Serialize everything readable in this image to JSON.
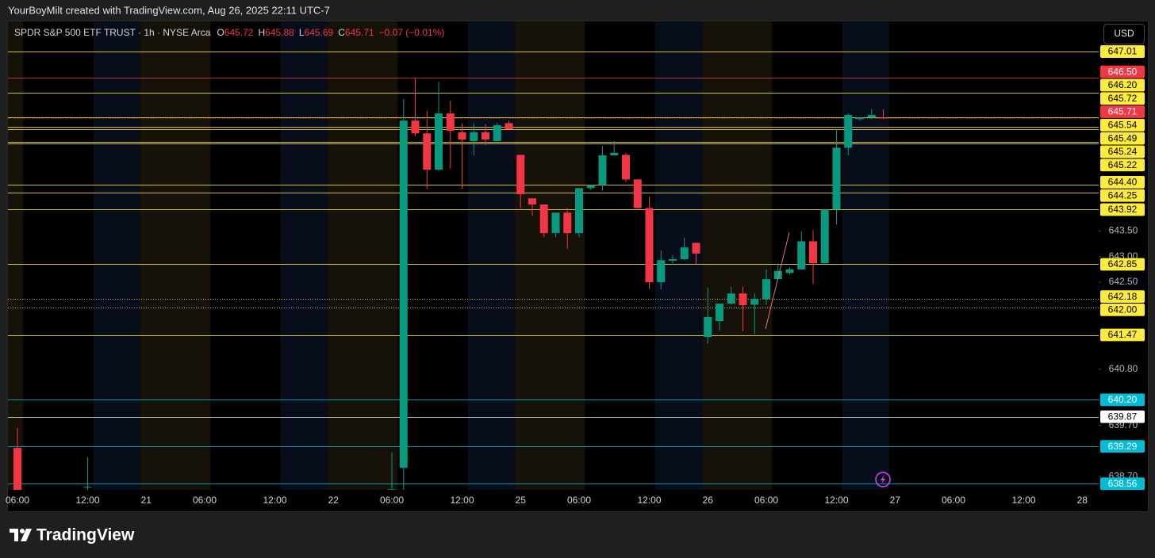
{
  "header": "YourBoyMilt created with TradingView.com, Aug 26, 2025 22:11 UTC-7",
  "footer_logo": "TradingView",
  "chart_data": {
    "type": "candlestick",
    "legend": {
      "symbol": "SPDR S&P 500 ETF TRUST · 1h · NYSE Arca",
      "open_label": "O",
      "open": 645.72,
      "high_label": "H",
      "high": 645.88,
      "low_label": "L",
      "low": 645.69,
      "close_label": "C",
      "close": 645.71,
      "change": "−0.07 (−0.01%)",
      "color": "#f23645"
    },
    "currency": "USD",
    "categories": [
      "06:00",
      null,
      null,
      null,
      null,
      null,
      "12:00",
      null,
      null,
      null,
      null,
      "21",
      null,
      null,
      null,
      null,
      "06:00",
      null,
      null,
      null,
      null,
      null,
      "12:00",
      null,
      null,
      null,
      null,
      "22",
      null,
      null,
      null,
      null,
      "06:00",
      null,
      null,
      null,
      null,
      null,
      "12:00",
      null,
      null,
      null,
      null,
      "25",
      null,
      null,
      null,
      null,
      "06:00",
      null,
      null,
      null,
      null,
      null,
      "12:00",
      null,
      null,
      null,
      null,
      "26",
      null,
      null,
      null,
      null,
      "06:00",
      null,
      null,
      null,
      null,
      null,
      "12:00",
      null,
      null,
      null,
      null,
      "27",
      null,
      null,
      null,
      null,
      "06:00",
      null,
      null,
      null,
      null,
      null,
      "12:00",
      null,
      null,
      null,
      null,
      "28",
      null
    ],
    "open": [
      639.26,
      null,
      null,
      null,
      null,
      null,
      638.5,
      null,
      null,
      null,
      null,
      null,
      null,
      null,
      null,
      null,
      null,
      null,
      null,
      null,
      null,
      null,
      null,
      null,
      null,
      null,
      null,
      null,
      null,
      null,
      null,
      null,
      638.4,
      638.87,
      645.66,
      645.41,
      644.7,
      645.8,
      645.43,
      645.26,
      645.43,
      645.26,
      645.61,
      644.99,
      644.14,
      644.02,
      643.46,
      643.86,
      643.46,
      644.34,
      644.4,
      644.98,
      644.99,
      644.51,
      643.95,
      642.5,
      642.92,
      642.95,
      643.27,
      641.43,
      641.74,
      642.08,
      642.28,
      642.06,
      642.17,
      642.56,
      642.68,
      642.75,
      643.3,
      642.87,
      643.92,
      645.13,
      645.69,
      645.72,
      645.72,
      null,
      null,
      null,
      null,
      null,
      null,
      null,
      null,
      null,
      null,
      null,
      null,
      null,
      null,
      null,
      null,
      null,
      null
    ],
    "high": [
      639.65,
      null,
      null,
      null,
      null,
      null,
      639.07,
      null,
      null,
      null,
      null,
      null,
      null,
      null,
      null,
      null,
      null,
      null,
      null,
      null,
      null,
      null,
      null,
      null,
      null,
      null,
      null,
      null,
      null,
      null,
      null,
      null,
      639.17,
      646.08,
      646.5,
      645.85,
      646.42,
      646.05,
      645.61,
      645.61,
      645.59,
      645.61,
      645.66,
      644.99,
      644.14,
      644.02,
      643.86,
      643.95,
      644.34,
      644.4,
      645.16,
      645.26,
      645.03,
      644.51,
      644.17,
      643.12,
      643.03,
      643.37,
      643.27,
      642.39,
      642.08,
      642.41,
      642.41,
      642.28,
      642.75,
      642.87,
      642.79,
      643.49,
      643.52,
      643.92,
      645.49,
      645.8,
      645.72,
      645.88,
      645.88,
      null,
      null,
      null,
      null,
      null,
      null,
      null,
      null,
      null,
      null,
      null,
      null,
      null,
      null,
      null,
      null,
      null,
      null
    ],
    "low": [
      638.3,
      null,
      null,
      null,
      null,
      null,
      638.4,
      null,
      null,
      null,
      null,
      null,
      null,
      null,
      null,
      null,
      null,
      null,
      null,
      null,
      null,
      null,
      null,
      null,
      null,
      null,
      null,
      null,
      null,
      null,
      null,
      null,
      638.3,
      638.44,
      645.35,
      644.33,
      644.68,
      644.72,
      644.33,
      644.98,
      645.18,
      645.26,
      645.49,
      643.95,
      643.8,
      643.38,
      643.38,
      643.15,
      643.38,
      644.3,
      644.29,
      644.98,
      644.45,
      643.95,
      642.37,
      642.36,
      642.87,
      642.93,
      642.85,
      641.3,
      641.56,
      642.06,
      641.54,
      641.49,
      642.06,
      642.56,
      642.65,
      642.75,
      642.47,
      642.84,
      643.63,
      644.98,
      645.66,
      645.69,
      645.69,
      null,
      null,
      null,
      null,
      null,
      null,
      null,
      null,
      null,
      null,
      null,
      null,
      null,
      null,
      null,
      null,
      null,
      null
    ],
    "close": [
      638.4,
      null,
      null,
      null,
      null,
      null,
      638.5,
      null,
      null,
      null,
      null,
      null,
      null,
      null,
      null,
      null,
      null,
      null,
      null,
      null,
      null,
      null,
      null,
      null,
      null,
      null,
      null,
      null,
      null,
      null,
      null,
      null,
      638.45,
      645.66,
      645.41,
      644.7,
      645.8,
      645.46,
      645.29,
      645.43,
      645.29,
      645.57,
      645.49,
      644.22,
      644.02,
      643.46,
      643.86,
      643.46,
      644.34,
      644.4,
      644.98,
      645.03,
      644.51,
      643.95,
      642.5,
      642.93,
      642.95,
      643.18,
      643.06,
      641.82,
      642.08,
      642.28,
      642.05,
      642.17,
      642.56,
      642.72,
      642.75,
      643.3,
      642.87,
      643.92,
      645.13,
      645.77,
      645.72,
      645.77,
      645.71,
      null,
      null,
      null,
      null,
      null,
      null,
      null,
      null,
      null,
      null,
      null,
      null,
      null,
      null,
      null,
      null,
      null,
      null
    ],
    "up_color": "#089981",
    "down_color": "#f23645",
    "ylim": [
      638.44,
      647.6
    ],
    "yticks": [
      {
        "value": 643.5,
        "label": "643.50"
      },
      {
        "value": 643,
        "label": "643.00"
      },
      {
        "value": 642.5,
        "label": "642.50"
      },
      {
        "value": 640.8,
        "label": "640.80"
      },
      {
        "value": 639.7,
        "label": "639.70"
      },
      {
        "value": 638.7,
        "label": "638.70"
      }
    ],
    "grid": false,
    "levels": [
      {
        "value": 647.01,
        "label": "647.01",
        "color": "#ffeb3b",
        "text_color": "#000000",
        "style": "solid"
      },
      {
        "value": 646.5,
        "label": "646.50",
        "color": "#f23645",
        "text_color": "#ffffff",
        "style": "solid"
      },
      {
        "value": 646.2,
        "label": "646.20",
        "color": "#ffeb3b",
        "text_color": "#000000",
        "style": "solid"
      },
      {
        "value": 645.72,
        "label": "645.72",
        "color": "#ffeb3b",
        "text_color": "#000000",
        "style": "solid"
      },
      {
        "value": 645.71,
        "label": "645.71",
        "color": "#f23645",
        "text_color": "#ffffff",
        "style": "dotted"
      },
      {
        "value": 645.54,
        "label": "645.54",
        "color": "#ffeb3b",
        "text_color": "#000000",
        "style": "solid"
      },
      {
        "value": 645.49,
        "label": "645.49",
        "color": "#ffeb3b",
        "text_color": "#000000",
        "style": "solid"
      },
      {
        "value": 645.24,
        "label": "645.24",
        "color": "#ffeb3b",
        "text_color": "#000000",
        "style": "solid"
      },
      {
        "value": 645.22,
        "label": "645.22",
        "color": "#ffeb3b",
        "text_color": "#000000",
        "style": "solid"
      },
      {
        "value": 644.4,
        "label": "644.40",
        "color": "#ffeb3b",
        "text_color": "#000000",
        "style": "solid"
      },
      {
        "value": 644.25,
        "label": "644.25",
        "color": "#ffeb3b",
        "text_color": "#000000",
        "style": "solid"
      },
      {
        "value": 643.92,
        "label": "643.92",
        "color": "#ffeb3b",
        "text_color": "#000000",
        "style": "solid"
      },
      {
        "value": 642.85,
        "label": "642.85",
        "color": "#ffeb3b",
        "text_color": "#000000",
        "style": "solid"
      },
      {
        "value": 642.18,
        "label": "642.18",
        "color": "#ffeb3b",
        "text_color": "#000000",
        "style": "dotted"
      },
      {
        "value": 642,
        "label": "642.00",
        "color": "#ffeb3b",
        "text_color": "#000000",
        "style": "dotted"
      },
      {
        "value": 641.47,
        "label": "641.47",
        "color": "#ffeb3b",
        "text_color": "#000000",
        "style": "solid"
      },
      {
        "value": 640.2,
        "label": "640.20",
        "color": "#00bcd4",
        "text_color": "#ffffff",
        "style": "solid"
      },
      {
        "value": 639.87,
        "label": "639.87",
        "color": "#ffffff",
        "text_color": "#000000",
        "style": "solid"
      },
      {
        "value": 639.29,
        "label": "639.29",
        "color": "#00bcd4",
        "text_color": "#ffffff",
        "style": "solid"
      },
      {
        "value": 638.56,
        "label": "638.56",
        "color": "#00bcd4",
        "text_color": "#ffffff",
        "style": "solid"
      }
    ]
  }
}
